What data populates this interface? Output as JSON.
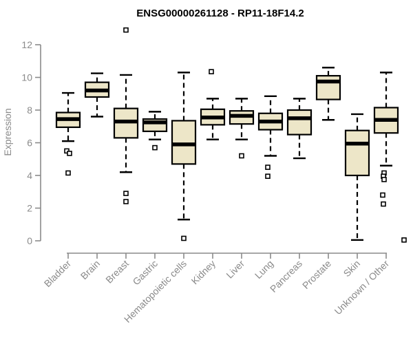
{
  "page": {
    "background": "#ffffff"
  },
  "chart_data": {
    "type": "boxplot",
    "title": "ENSG00000261128 - RP11-18F14.2",
    "xlabel": "",
    "ylabel": "Expression",
    "ylim": [
      0,
      12
    ],
    "yticks": [
      0,
      2,
      4,
      6,
      8,
      10,
      12
    ],
    "grid": false,
    "legend": "none",
    "xticklabel_rotation": 45,
    "categories": [
      "Bladder",
      "Brain",
      "Breast",
      "Gastric",
      "Hematopoietic cells",
      "Kidney",
      "Liver",
      "Lung",
      "Pancreas",
      "Prostate",
      "Skin",
      "Unknown / Other"
    ],
    "series": [
      {
        "name": "Bladder",
        "whisker_low": 6.1,
        "q1": 6.95,
        "median": 7.45,
        "q3": 7.85,
        "whisker_high": 9.05,
        "outliers": [
          {
            "v": 5.5,
            "dx": -2
          },
          {
            "v": 5.35,
            "dx": 2
          },
          {
            "v": 4.15,
            "dx": 0
          }
        ]
      },
      {
        "name": "Brain",
        "whisker_low": 7.6,
        "q1": 8.8,
        "median": 9.2,
        "q3": 9.7,
        "whisker_high": 10.25,
        "outliers": []
      },
      {
        "name": "Breast",
        "whisker_low": 4.2,
        "q1": 6.3,
        "median": 7.3,
        "q3": 8.1,
        "whisker_high": 10.15,
        "outliers": [
          {
            "v": 12.9,
            "dx": 0
          },
          {
            "v": 2.9,
            "dx": 0
          },
          {
            "v": 2.4,
            "dx": 0
          }
        ]
      },
      {
        "name": "Gastric",
        "whisker_low": 6.2,
        "q1": 6.7,
        "median": 7.25,
        "q3": 7.45,
        "whisker_high": 7.9,
        "outliers": [
          {
            "v": 5.7,
            "dx": 0
          }
        ]
      },
      {
        "name": "Hematopoietic cells",
        "whisker_low": 1.3,
        "q1": 4.7,
        "median": 5.9,
        "q3": 7.35,
        "whisker_high": 10.3,
        "outliers": [
          {
            "v": 0.15,
            "dx": 0
          }
        ]
      },
      {
        "name": "Kidney",
        "whisker_low": 6.2,
        "q1": 7.1,
        "median": 7.55,
        "q3": 8.05,
        "whisker_high": 8.7,
        "outliers": [
          {
            "v": 10.35,
            "dx": -2
          }
        ]
      },
      {
        "name": "Liver",
        "whisker_low": 6.2,
        "q1": 7.15,
        "median": 7.65,
        "q3": 7.95,
        "whisker_high": 8.7,
        "outliers": [
          {
            "v": 5.2,
            "dx": 0
          }
        ]
      },
      {
        "name": "Lung",
        "whisker_low": 5.2,
        "q1": 6.8,
        "median": 7.3,
        "q3": 7.8,
        "whisker_high": 8.85,
        "outliers": [
          {
            "v": 4.5,
            "dx": -4
          },
          {
            "v": 3.95,
            "dx": -4
          }
        ]
      },
      {
        "name": "Pancreas",
        "whisker_low": 5.05,
        "q1": 6.5,
        "median": 7.5,
        "q3": 8.0,
        "whisker_high": 8.7,
        "outliers": []
      },
      {
        "name": "Prostate",
        "whisker_low": 7.4,
        "q1": 8.65,
        "median": 9.75,
        "q3": 10.1,
        "whisker_high": 10.6,
        "outliers": []
      },
      {
        "name": "Skin",
        "whisker_low": 0.05,
        "q1": 4.0,
        "median": 5.95,
        "q3": 6.75,
        "whisker_high": 7.75,
        "outliers": []
      },
      {
        "name": "Unknown / Other",
        "whisker_low": 4.6,
        "q1": 6.6,
        "median": 7.4,
        "q3": 8.15,
        "whisker_high": 10.3,
        "outliers": [
          {
            "v": 4.15,
            "dx": -3
          },
          {
            "v": 3.95,
            "dx": -4
          },
          {
            "v": 3.75,
            "dx": -3
          },
          {
            "v": 2.8,
            "dx": -5
          },
          {
            "v": 2.25,
            "dx": -4
          },
          {
            "v": 0.05,
            "dx": 26
          }
        ]
      }
    ],
    "colors": {
      "box_fill": "#EDE6C8",
      "box_stroke": "#000000",
      "median": "#000000",
      "outlier_fill": "#ffffff",
      "outlier_stroke": "#000000",
      "axis": "#8a8a8a",
      "tick_label": "#8a8a8a",
      "title": "#000000",
      "background": "#ffffff"
    }
  }
}
